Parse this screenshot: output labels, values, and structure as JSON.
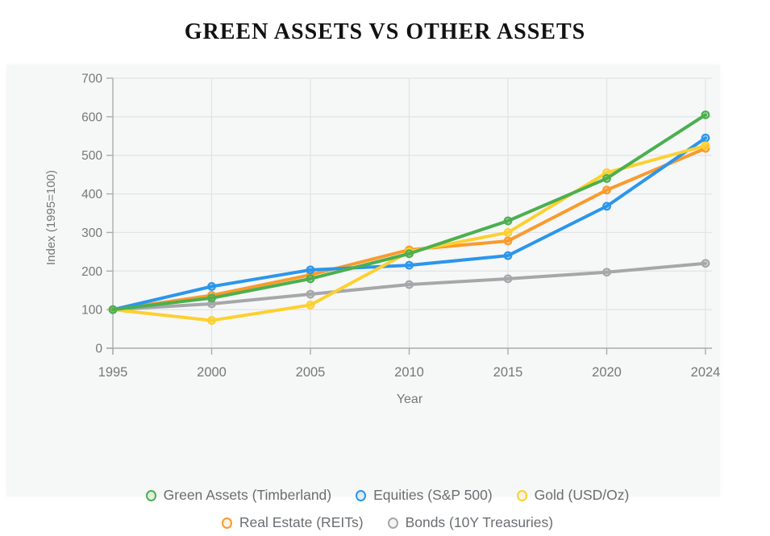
{
  "title": "GREEN ASSETS VS OTHER ASSETS",
  "chart_data": {
    "type": "line",
    "title": "GREEN ASSETS VS OTHER ASSETS",
    "xlabel": "Year",
    "ylabel": "Index (1995=100)",
    "x": [
      1995,
      2000,
      2005,
      2010,
      2015,
      2020,
      2024
    ],
    "x_tick_labels": [
      "1995",
      "2000",
      "2005",
      "2010",
      "2015",
      "2020",
      "2024"
    ],
    "y_ticks": [
      0,
      100,
      200,
      300,
      400,
      500,
      600,
      700
    ],
    "ylim": [
      0,
      700
    ],
    "grid": true,
    "legend_position": "bottom",
    "series": [
      {
        "name": "Green Assets (Timberland)",
        "color": "#4caf50",
        "values": [
          100,
          130,
          180,
          245,
          330,
          440,
          605
        ]
      },
      {
        "name": "Equities (S&P 500)",
        "color": "#2b96ec",
        "values": [
          100,
          160,
          203,
          215,
          240,
          368,
          545
        ]
      },
      {
        "name": "Gold (USD/Oz)",
        "color": "#fdd02e",
        "values": [
          100,
          72,
          112,
          250,
          300,
          455,
          525
        ]
      },
      {
        "name": "Real Estate (REITs)",
        "color": "#f99b2c",
        "values": [
          100,
          137,
          190,
          255,
          278,
          410,
          518
        ]
      },
      {
        "name": "Bonds (10Y Treasuries)",
        "color": "#a5a7a9",
        "values": [
          100,
          115,
          140,
          165,
          180,
          197,
          220
        ]
      }
    ],
    "legend_rows": [
      [
        0,
        1,
        2
      ],
      [
        3,
        4
      ]
    ]
  },
  "style_colors": {
    "panel_background": "#f6f7f7",
    "gridline": "#e2e3e5",
    "axis_line": "#a9abad",
    "tick_label": "#75787a",
    "legend_text": "#6b6e71",
    "title_text": "#121212"
  }
}
